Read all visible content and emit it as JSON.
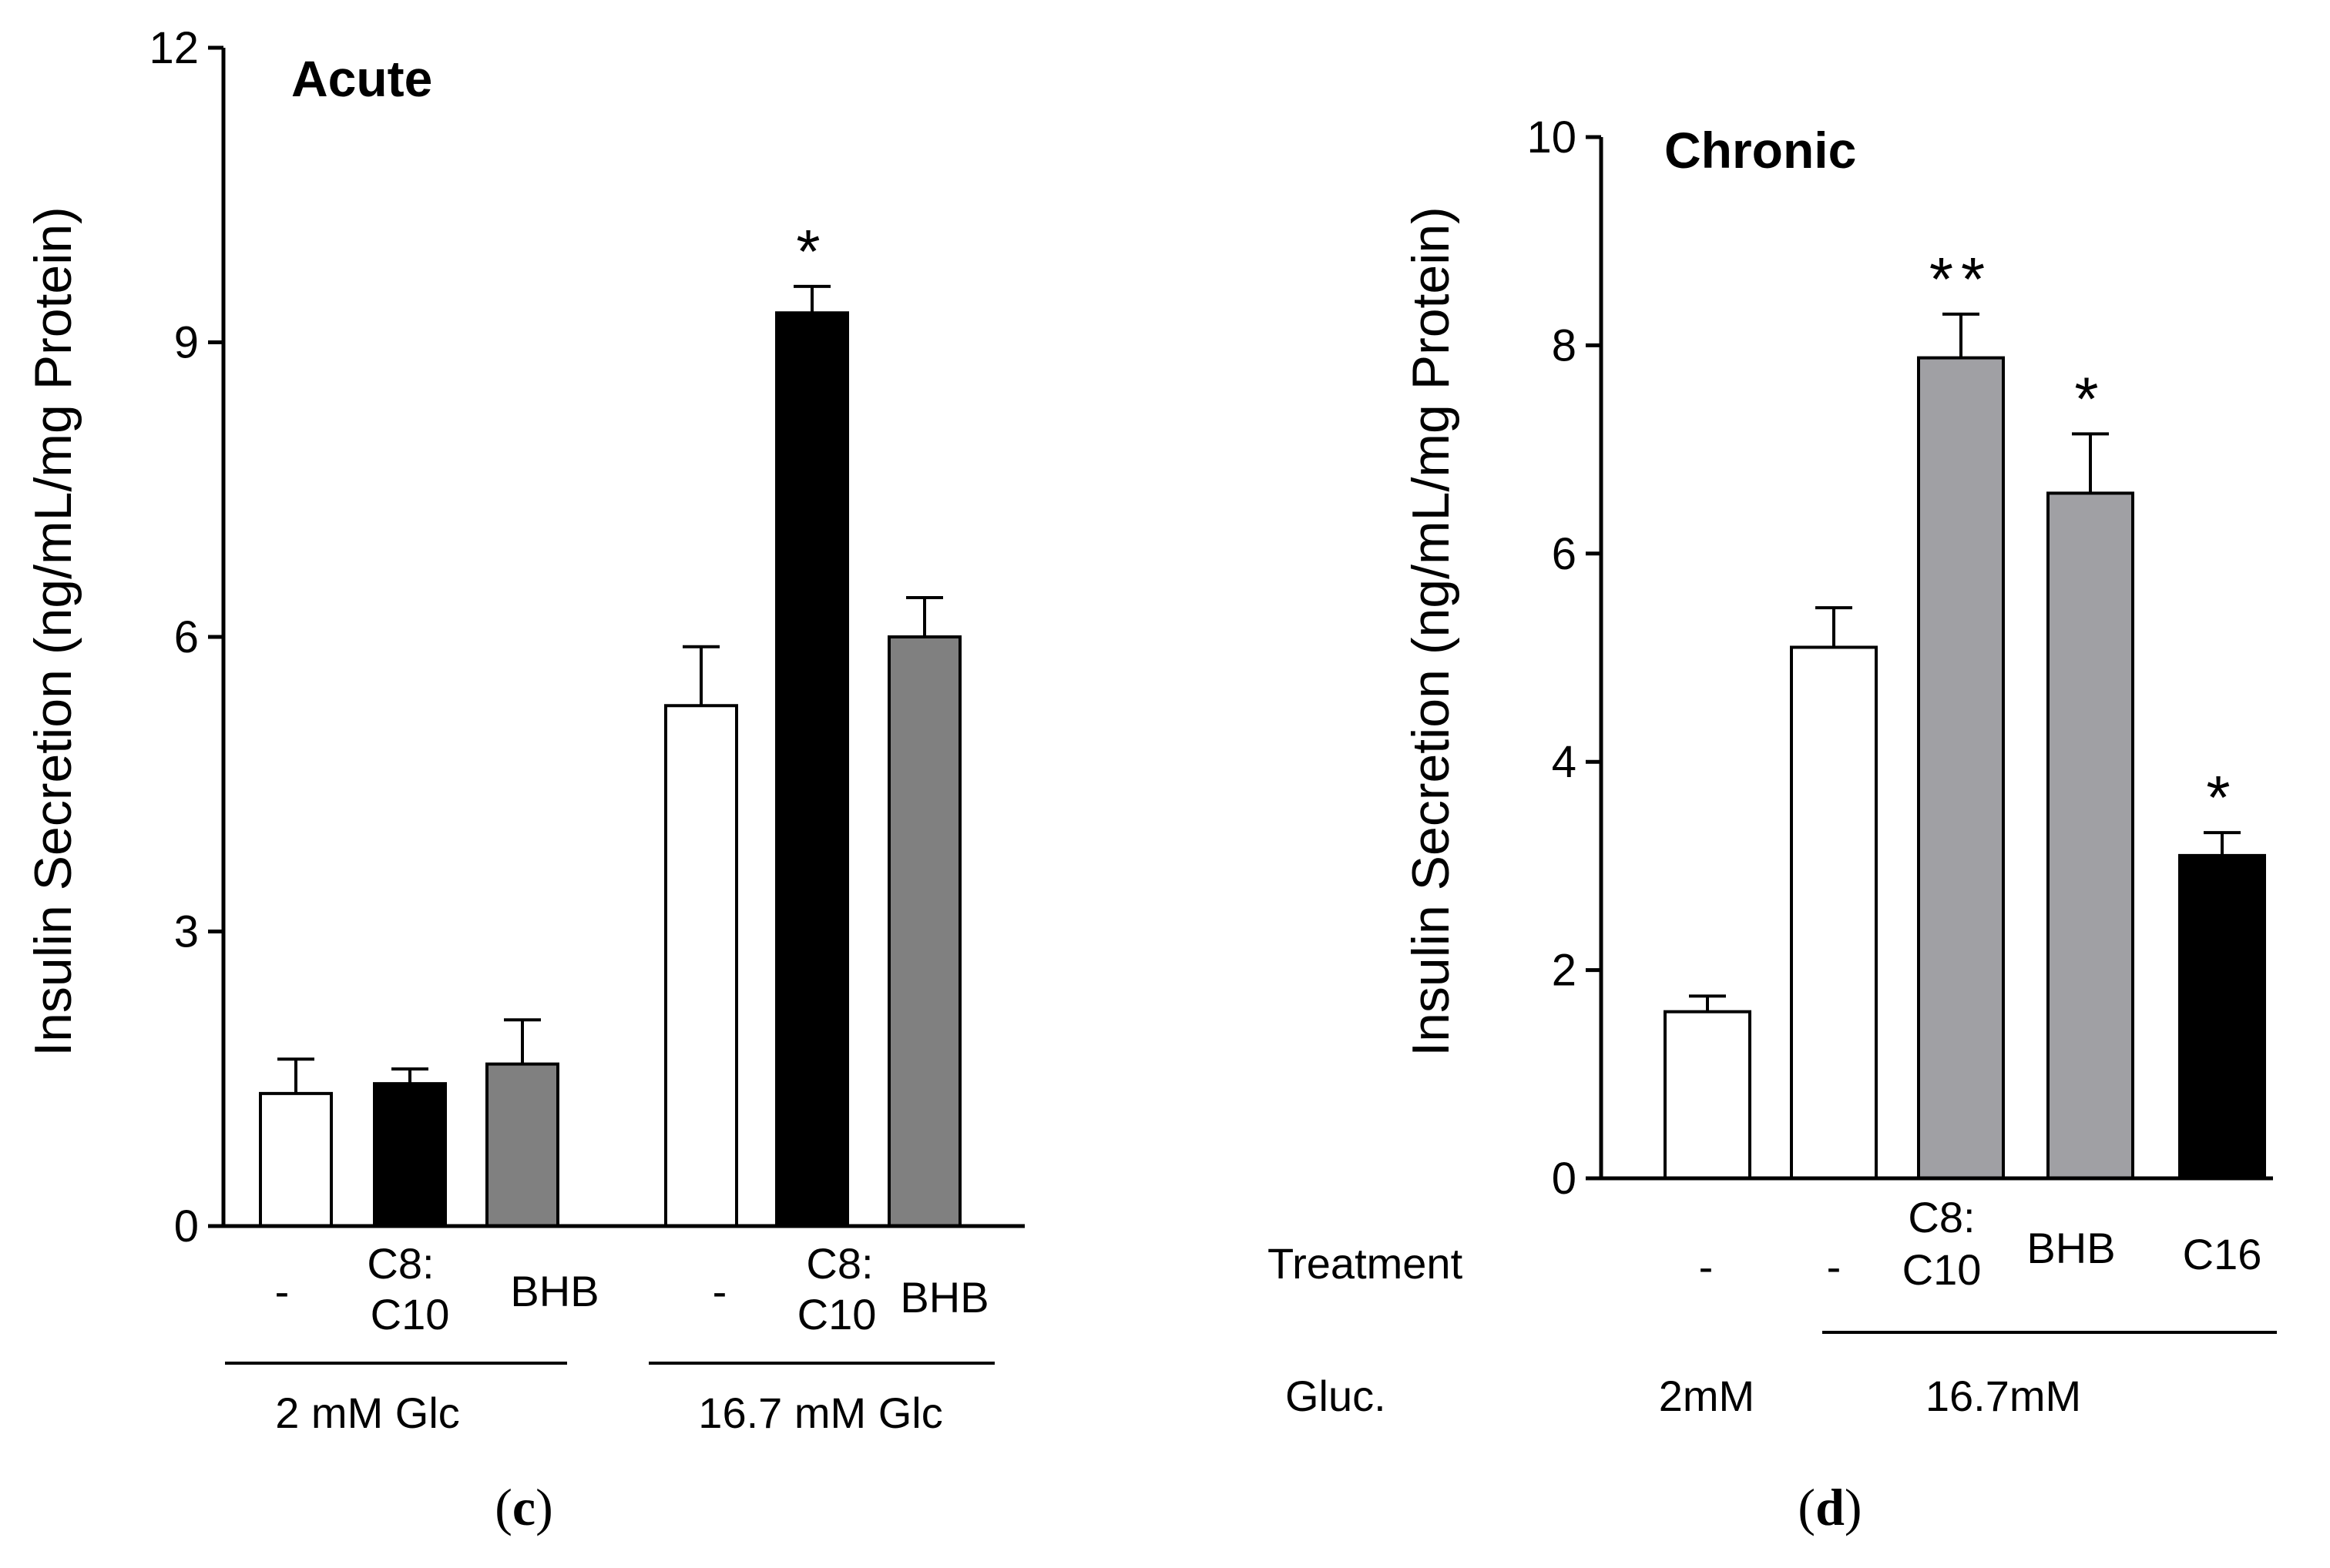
{
  "chart_data": [
    {
      "type": "bar",
      "title": "Acute",
      "panel_label_open": "(",
      "panel_label_letter": "c",
      "panel_label_close": ")",
      "ylabel": "Insulin Secretion (ng/mL/mg Protein)",
      "ylim": [
        0,
        12
      ],
      "yticks": [
        "0",
        "3",
        "6",
        "9",
        "12"
      ],
      "bars": [
        {
          "label_lines": [
            "-"
          ],
          "value": 1.35,
          "error": 0.35,
          "color": "#ffffff",
          "annotation": ""
        },
        {
          "label_lines": [
            "C8:",
            "C10"
          ],
          "value": 1.45,
          "error": 0.15,
          "color": "#000000",
          "annotation": ""
        },
        {
          "label_lines": [
            "BHB"
          ],
          "value": 1.65,
          "error": 0.45,
          "color": "#808080",
          "annotation": ""
        },
        {
          "label_lines": [
            "-"
          ],
          "value": 5.3,
          "error": 0.6,
          "color": "#ffffff",
          "annotation": ""
        },
        {
          "label_lines": [
            "C8:",
            "C10"
          ],
          "value": 9.3,
          "error": 0.27,
          "color": "#000000",
          "annotation": "*"
        },
        {
          "label_lines": [
            "BHB"
          ],
          "value": 6.0,
          "error": 0.4,
          "color": "#808080",
          "annotation": ""
        }
      ],
      "groups": [
        {
          "label": "2 mM  Glc"
        },
        {
          "label": "16.7 mM  Glc"
        }
      ]
    },
    {
      "type": "bar",
      "title": "Chronic",
      "panel_label_open": "(",
      "panel_label_letter": "d",
      "panel_label_close": ")",
      "ylabel": "Insulin Secretion (ng/mL/mg Protein)",
      "ylim": [
        0,
        10
      ],
      "yticks": [
        "0",
        "2",
        "4",
        "6",
        "8",
        "10"
      ],
      "row_labels": {
        "treatment": "Treatment",
        "glucose": "Gluc."
      },
      "bars": [
        {
          "label_lines": [
            "-"
          ],
          "value": 1.6,
          "error": 0.15,
          "color": "#ffffff",
          "annotation": ""
        },
        {
          "label_lines": [
            "-"
          ],
          "value": 5.1,
          "error": 0.38,
          "color": "#ffffff",
          "annotation": ""
        },
        {
          "label_lines": [
            "C8:",
            "C10"
          ],
          "value": 7.88,
          "error": 0.42,
          "color": "#a0a0a4",
          "annotation": "**"
        },
        {
          "label_lines": [
            "BHB"
          ],
          "value": 6.58,
          "error": 0.57,
          "color": "#a0a0a4",
          "annotation": "*"
        },
        {
          "label_lines": [
            "C16"
          ],
          "value": 3.1,
          "error": 0.22,
          "color": "#000000",
          "annotation": "*"
        }
      ],
      "groups": [
        {
          "label": "2mM"
        },
        {
          "label": "16.7mM"
        }
      ]
    }
  ]
}
